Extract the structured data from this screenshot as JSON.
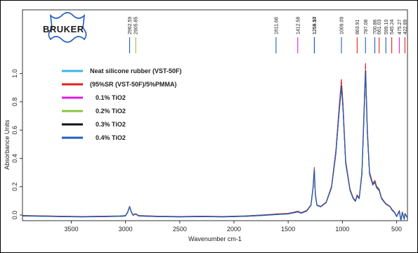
{
  "logo": {
    "text": "BRUKER",
    "color": "#1f5fbf"
  },
  "chart_data": {
    "type": "line",
    "title": "",
    "xlabel": "Wavenumber cm-1",
    "ylabel": "Absorbance Units",
    "xlim": [
      3950,
      400
    ],
    "ylim": [
      -0.04,
      1.45
    ],
    "x_reversed": true,
    "x_ticks": [
      3500,
      3000,
      2500,
      2000,
      1500,
      1000,
      500
    ],
    "y_ticks": [
      0.0,
      0.2,
      0.4,
      0.6,
      0.8,
      1.0
    ],
    "y_tick_labels": [
      "0.0",
      "0.2",
      "0.4",
      "0.6",
      "0.8",
      "1.0"
    ],
    "grid": false,
    "legend_position": "top-left",
    "series": [
      {
        "name": "Neat silicone rubber (VST-50F)",
        "color": "#3cb4e6",
        "y_scale": 1.0
      },
      {
        "name": "(95%SR (VST-50F)/5%PMMA)",
        "color": "#e2231a",
        "y_scale": 1.02
      },
      {
        "name": "0.1% TiO2",
        "color": "#e01ee0",
        "y_scale": 0.99
      },
      {
        "name": "0.2% TiO2",
        "color": "#8cc63f",
        "y_scale": 0.98
      },
      {
        "name": "0.3% TiO2",
        "color": "#111111",
        "y_scale": 0.97
      },
      {
        "name": "0.4% TiO2",
        "color": "#1f5fbf",
        "y_scale": 0.96
      }
    ],
    "spectrum_points": [
      [
        3950,
        -0.005
      ],
      [
        3800,
        -0.007
      ],
      [
        3600,
        -0.01
      ],
      [
        3400,
        -0.012
      ],
      [
        3200,
        -0.01
      ],
      [
        3050,
        -0.008
      ],
      [
        3000,
        -0.005
      ],
      [
        2980,
        0.02
      ],
      [
        2962,
        0.06
      ],
      [
        2945,
        0.02
      ],
      [
        2930,
        0.0
      ],
      [
        2906,
        0.008
      ],
      [
        2880,
        -0.005
      ],
      [
        2700,
        -0.01
      ],
      [
        2500,
        -0.012
      ],
      [
        2300,
        -0.01
      ],
      [
        2100,
        -0.012
      ],
      [
        1900,
        -0.008
      ],
      [
        1750,
        -0.002
      ],
      [
        1612,
        0.005
      ],
      [
        1500,
        0.01
      ],
      [
        1450,
        0.018
      ],
      [
        1412,
        0.025
      ],
      [
        1380,
        0.015
      ],
      [
        1330,
        0.03
      ],
      [
        1290,
        0.07
      ],
      [
        1270,
        0.2
      ],
      [
        1259,
        0.33
      ],
      [
        1250,
        0.15
      ],
      [
        1235,
        0.07
      ],
      [
        1200,
        0.06
      ],
      [
        1150,
        0.09
      ],
      [
        1100,
        0.2
      ],
      [
        1060,
        0.45
      ],
      [
        1030,
        0.75
      ],
      [
        1009,
        0.94
      ],
      [
        995,
        0.78
      ],
      [
        970,
        0.38
      ],
      [
        930,
        0.18
      ],
      [
        900,
        0.12
      ],
      [
        880,
        0.1
      ],
      [
        864,
        0.14
      ],
      [
        845,
        0.12
      ],
      [
        820,
        0.3
      ],
      [
        800,
        0.75
      ],
      [
        787,
        1.05
      ],
      [
        770,
        0.6
      ],
      [
        750,
        0.3
      ],
      [
        720,
        0.22
      ],
      [
        700,
        0.24
      ],
      [
        685,
        0.2
      ],
      [
        661,
        0.18
      ],
      [
        640,
        0.12
      ],
      [
        600,
        0.08
      ],
      [
        560,
        0.06
      ],
      [
        545,
        0.04
      ],
      [
        520,
        0.02
      ],
      [
        500,
        -0.01
      ],
      [
        475,
        0.03
      ],
      [
        460,
        -0.04
      ],
      [
        448,
        0.02
      ],
      [
        430,
        -0.03
      ],
      [
        423,
        0.01
      ],
      [
        400,
        -0.02
      ]
    ],
    "peak_labels": [
      {
        "x": 2962,
        "label": "2962.59",
        "color": "#1f5fbf"
      },
      {
        "x": 2906,
        "label": "2905.85",
        "color": "#8cc63f"
      },
      {
        "x": 1612,
        "label": "1611.68",
        "color": "#1f5fbf"
      },
      {
        "x": 1412,
        "label": "1412.58",
        "color": "#e01ee0"
      },
      {
        "x": 1259,
        "label": "1259.50",
        "color": "#1f5fbf"
      },
      {
        "x": 1258,
        "label": "1258.17",
        "color": "#1f5fbf"
      },
      {
        "x": 1009,
        "label": "1009.09",
        "color": "#1f5fbf"
      },
      {
        "x": 864,
        "label": "863.91",
        "color": "#e2231a"
      },
      {
        "x": 787,
        "label": "787.08",
        "color": "#1f5fbf"
      },
      {
        "x": 701,
        "label": "700.86",
        "color": "#1f5fbf"
      },
      {
        "x": 661,
        "label": "661.03",
        "color": "#e2231a"
      },
      {
        "x": 599,
        "label": "599.10",
        "color": "#1f5fbf"
      },
      {
        "x": 545,
        "label": "545.24",
        "color": "#e2231a"
      },
      {
        "x": 475,
        "label": "475.27",
        "color": "#e01ee0"
      },
      {
        "x": 423,
        "label": "422.89",
        "color": "#e2231a"
      }
    ]
  }
}
